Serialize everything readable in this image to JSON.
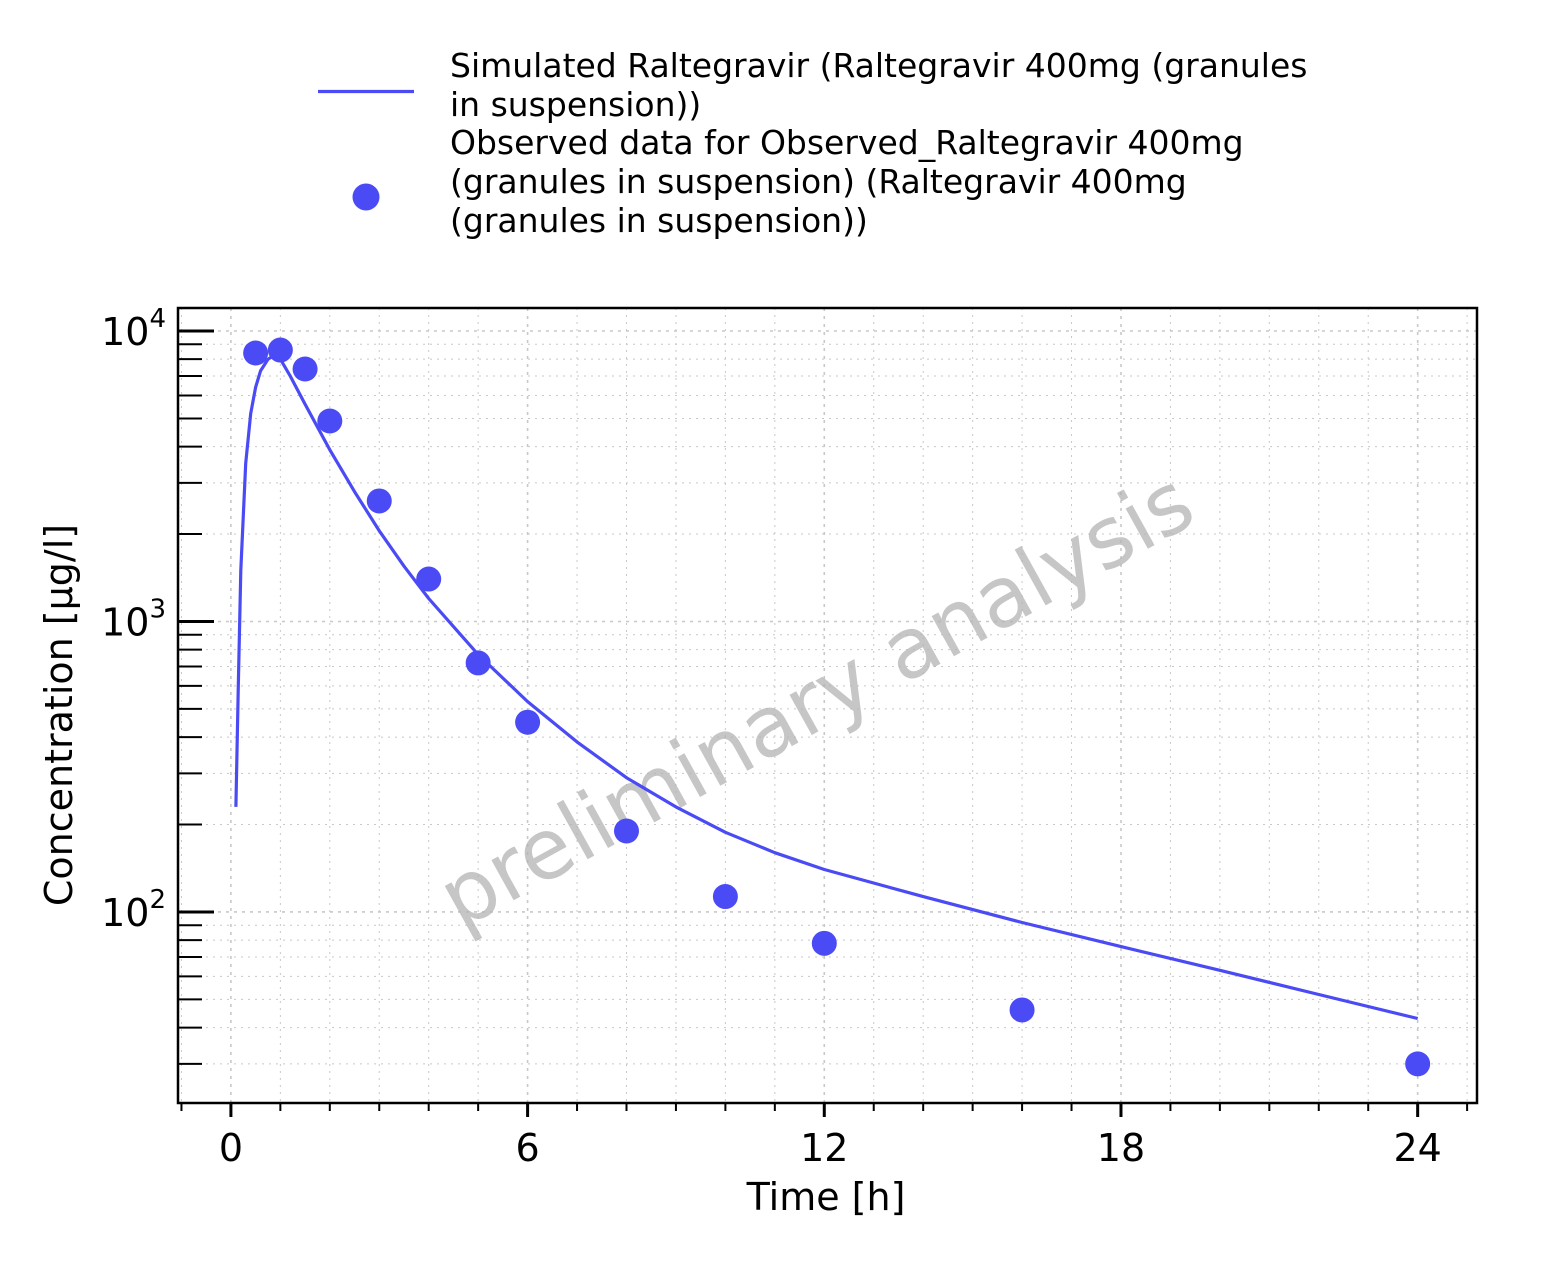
{
  "chart_data": {
    "type": "line",
    "xlabel": "Time [h]",
    "ylabel": "Concentration [µg/l]",
    "yscale": "log",
    "xlim": [
      -1.07,
      25.2
    ],
    "ylim": [
      22,
      12000
    ],
    "xticks": [
      0,
      6,
      12,
      18,
      24
    ],
    "xtick_labels": [
      "0",
      "6",
      "12",
      "18",
      "24"
    ],
    "yticks": [
      100,
      1000,
      10000
    ],
    "ytick_labels": [
      {
        "base": "10",
        "exp": "2"
      },
      {
        "base": "10",
        "exp": "3"
      },
      {
        "base": "10",
        "exp": "4"
      }
    ],
    "grid": true,
    "legend_position": "top",
    "watermark": "preliminary analysis",
    "colors": {
      "series": "#4b4bf5",
      "grid": "#c8c8c8",
      "axis": "#000000"
    },
    "legend": [
      {
        "marker": "line",
        "lines": [
          "Simulated Raltegravir (Raltegravir 400mg (granules",
          "in suspension))"
        ]
      },
      {
        "marker": "circle",
        "lines": [
          "Observed data for Observed_Raltegravir 400mg",
          "(granules in suspension) (Raltegravir 400mg",
          "(granules in suspension))"
        ]
      }
    ],
    "series": [
      {
        "name": "Simulated Raltegravir (Raltegravir 400mg (granules in suspension))",
        "kind": "line",
        "x": [
          0.1,
          0.15,
          0.2,
          0.3,
          0.4,
          0.5,
          0.6,
          0.75,
          0.9,
          1.0,
          1.2,
          1.5,
          2,
          2.5,
          3,
          3.5,
          4,
          5,
          6,
          7,
          8,
          9,
          10,
          11,
          12,
          14,
          16,
          18,
          20,
          22,
          24
        ],
        "y": [
          230,
          600,
          1500,
          3500,
          5200,
          6400,
          7300,
          8000,
          8300,
          8000,
          7000,
          5600,
          3900,
          2800,
          2050,
          1550,
          1200,
          770,
          530,
          385,
          290,
          230,
          188,
          160,
          140,
          113,
          92,
          76,
          63,
          52,
          43
        ]
      },
      {
        "name": "Observed data for Observed_Raltegravir 400mg (granules in suspension) (Raltegravir 400mg (granules in suspension))",
        "kind": "scatter",
        "x": [
          0.5,
          1,
          1.5,
          2,
          3,
          4,
          5,
          6,
          8,
          10,
          12,
          16,
          24
        ],
        "y": [
          8400,
          8600,
          7400,
          4900,
          2600,
          1400,
          720,
          450,
          190,
          113,
          78,
          46,
          30
        ]
      }
    ]
  }
}
